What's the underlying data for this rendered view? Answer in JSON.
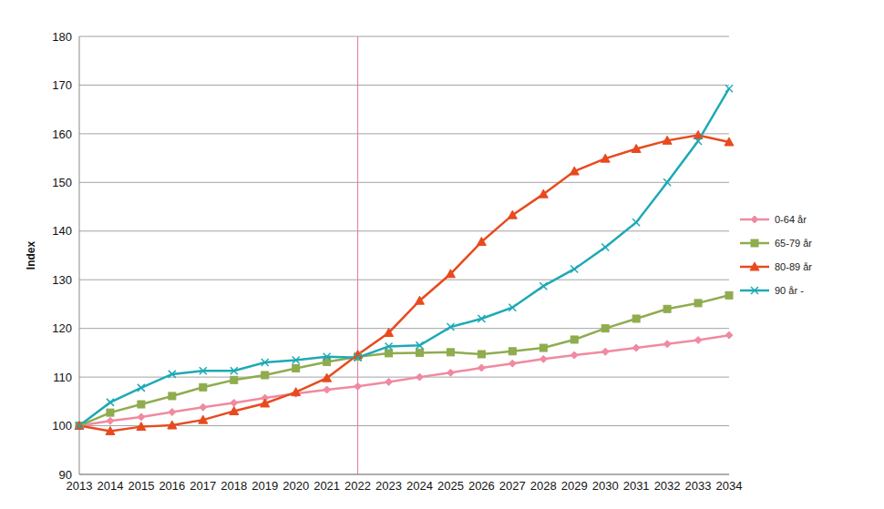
{
  "chart_data": {
    "type": "line",
    "y_label": "Index",
    "categories": [
      "2013",
      "2014",
      "2015",
      "2016",
      "2017",
      "2018",
      "2019",
      "2020",
      "2021",
      "2022",
      "2023",
      "2024",
      "2025",
      "2026",
      "2027",
      "2028",
      "2029",
      "2030",
      "2031",
      "2032",
      "2033",
      "2034"
    ],
    "ylim": [
      90,
      180
    ],
    "yticks": [
      90,
      100,
      110,
      120,
      130,
      140,
      150,
      160,
      170,
      180
    ],
    "grid": true,
    "legend": "right",
    "vline": "2022",
    "vline_color": "#e8759a",
    "series": [
      {
        "name": "0-64 år",
        "color": "#f08aa0",
        "marker": "diamond",
        "values": [
          100,
          101,
          101.8,
          102.8,
          103.8,
          104.7,
          105.7,
          106.6,
          107.4,
          108.1,
          109,
          110,
          110.9,
          111.9,
          112.8,
          113.7,
          114.5,
          115.2,
          116,
          116.8,
          117.6,
          118.6
        ]
      },
      {
        "name": "65-79 år",
        "color": "#8fac4e",
        "marker": "square",
        "values": [
          100,
          102.7,
          104.4,
          106.1,
          107.9,
          109.4,
          110.4,
          111.8,
          113.1,
          114.2,
          114.9,
          115,
          115.1,
          114.7,
          115.3,
          116,
          117.7,
          120,
          122,
          124,
          125.2,
          126.8
        ]
      },
      {
        "name": "80-89 år",
        "color": "#e84a1e",
        "marker": "triangle",
        "values": [
          100,
          98.9,
          99.8,
          100.1,
          101.2,
          103,
          104.6,
          106.9,
          109.8,
          114.6,
          119.1,
          125.7,
          131.2,
          137.8,
          143.3,
          147.6,
          152.3,
          154.9,
          156.9,
          158.6,
          159.7,
          158.3
        ]
      },
      {
        "name": "90 år -",
        "color": "#1ea9b6",
        "marker": "x",
        "values": [
          100,
          104.8,
          107.8,
          110.6,
          111.3,
          111.3,
          113,
          113.5,
          114.2,
          114,
          116.3,
          116.5,
          120.3,
          122,
          124.3,
          128.7,
          132.2,
          136.7,
          141.8,
          150,
          158.5,
          169.3
        ]
      }
    ]
  }
}
